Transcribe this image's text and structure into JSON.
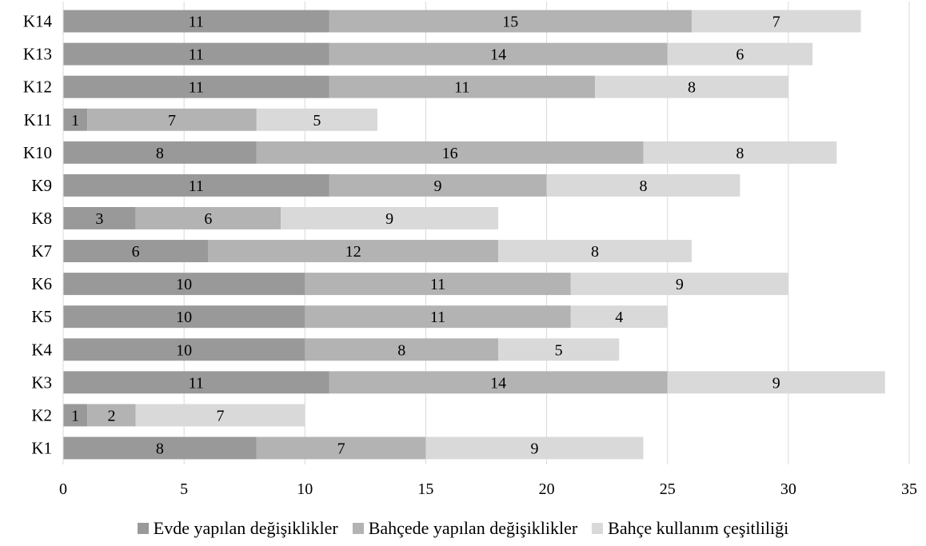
{
  "chart_data": {
    "type": "bar",
    "orientation": "horizontal",
    "stacked": true,
    "title": "",
    "xlabel": "",
    "ylabel": "",
    "xlim": [
      0,
      35
    ],
    "x_ticks": [
      0,
      5,
      10,
      15,
      20,
      25,
      30,
      35
    ],
    "grid": "vertical",
    "legend_position": "bottom",
    "categories": [
      "K1",
      "K2",
      "K3",
      "K4",
      "K5",
      "K6",
      "K7",
      "K8",
      "K9",
      "K10",
      "K11",
      "K12",
      "K13",
      "K14"
    ],
    "series": [
      {
        "name": "Evde yapılan değişiklikler",
        "color": "#999999",
        "values": [
          8,
          1,
          11,
          10,
          10,
          10,
          6,
          3,
          11,
          8,
          1,
          11,
          11,
          11
        ]
      },
      {
        "name": "Bahçede yapılan değişiklikler",
        "color": "#b3b3b3",
        "values": [
          7,
          2,
          14,
          8,
          11,
          11,
          12,
          6,
          9,
          16,
          7,
          11,
          14,
          15
        ]
      },
      {
        "name": "Bahçe kullanım çeşitliliği",
        "color": "#d9d9d9",
        "values": [
          9,
          7,
          9,
          5,
          4,
          9,
          8,
          9,
          8,
          8,
          5,
          8,
          6,
          7
        ]
      }
    ]
  }
}
